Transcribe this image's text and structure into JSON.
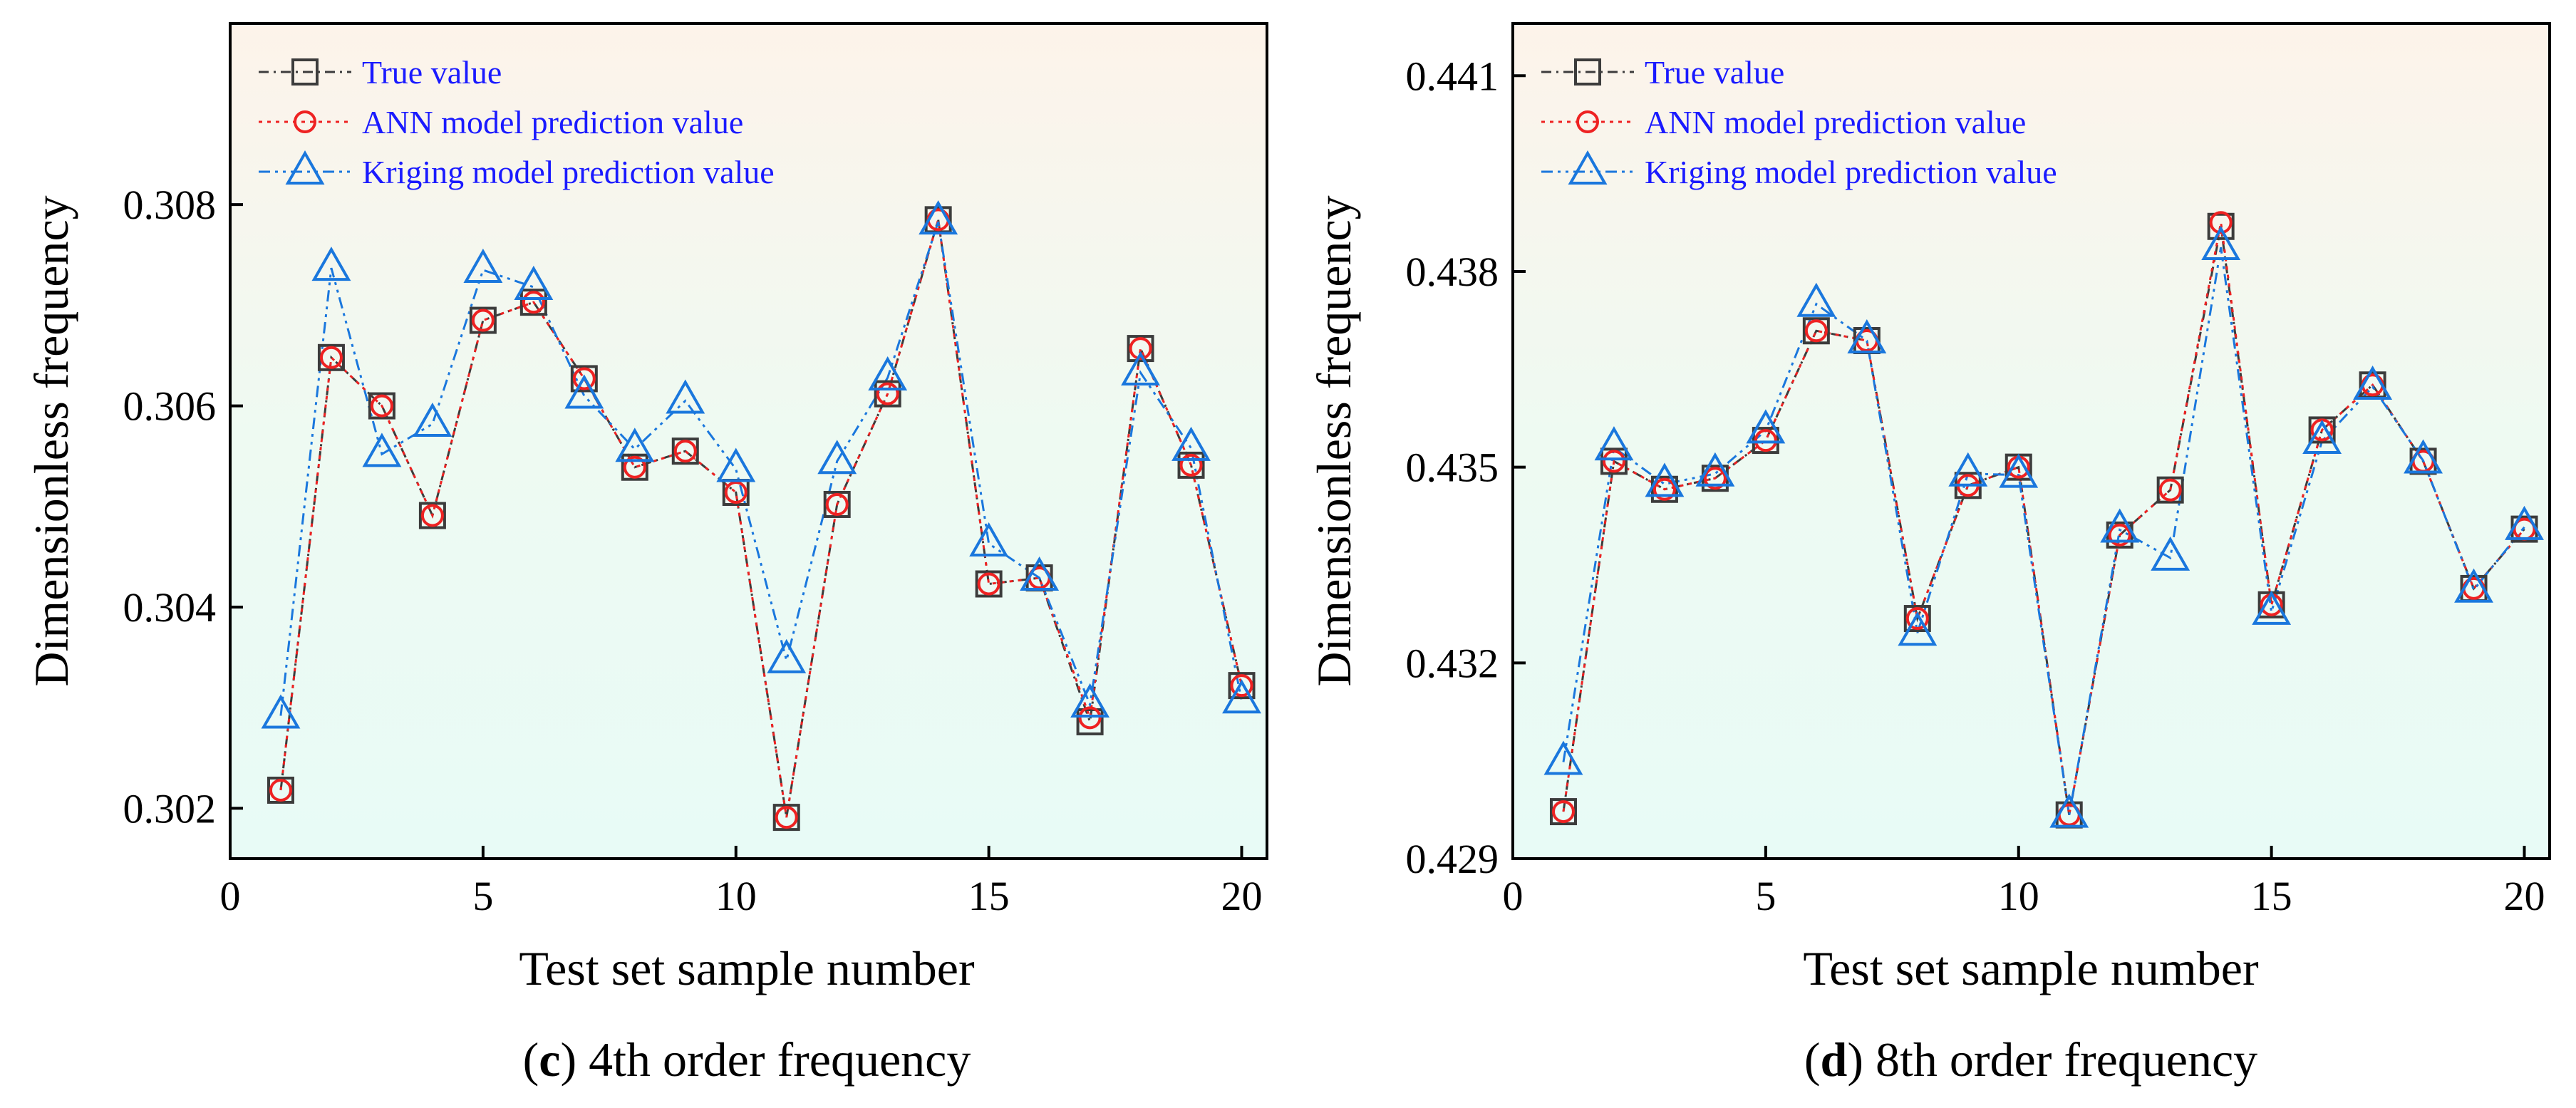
{
  "chart_data": [
    {
      "type": "line",
      "panel": "c",
      "caption": {
        "letter": "c",
        "text": "4th order frequency"
      },
      "xlabel": "Test set sample number",
      "ylabel": "Dimensionless  frequency",
      "xlim": [
        0,
        20.5
      ],
      "ylim": [
        0.3015,
        0.3098
      ],
      "xticks": [
        0,
        5,
        10,
        15,
        20
      ],
      "yticks": [
        0.302,
        0.304,
        0.306,
        0.308
      ],
      "ytick_labels": [
        "0.302",
        "0.304",
        "0.306",
        "0.308"
      ],
      "x": [
        1,
        2,
        3,
        4,
        5,
        6,
        7,
        8,
        9,
        10,
        11,
        12,
        13,
        14,
        15,
        16,
        17,
        18,
        19,
        20
      ],
      "legend_position": "top-left",
      "series": [
        {
          "name": "True value",
          "marker": "square",
          "color": "#3c3c3c",
          "values": [
            0.30218,
            0.30648,
            0.306,
            0.30491,
            0.30685,
            0.30703,
            0.30627,
            0.30539,
            0.30555,
            0.30514,
            0.30191,
            0.30502,
            0.30612,
            0.30785,
            0.30423,
            0.30429,
            0.30286,
            0.30657,
            0.30541,
            0.30322
          ]
        },
        {
          "name": "ANN model prediction value",
          "marker": "circle",
          "color": "#ee2222",
          "values": [
            0.30218,
            0.30648,
            0.306,
            0.30491,
            0.30685,
            0.30703,
            0.30627,
            0.30539,
            0.30555,
            0.30514,
            0.30191,
            0.30502,
            0.30612,
            0.30785,
            0.30423,
            0.30429,
            0.3029,
            0.30657,
            0.30541,
            0.30322
          ]
        },
        {
          "name": "Kriging model prediction value",
          "marker": "triangle",
          "color": "#1a77dd",
          "values": [
            0.30292,
            0.30737,
            0.30552,
            0.30582,
            0.30735,
            0.30718,
            0.3061,
            0.30557,
            0.30605,
            0.30537,
            0.30347,
            0.30545,
            0.30628,
            0.30783,
            0.30463,
            0.30429,
            0.30303,
            0.30633,
            0.30558,
            0.30307
          ]
        }
      ]
    },
    {
      "type": "line",
      "panel": "d",
      "caption": {
        "letter": "d",
        "text": "8th order frequency"
      },
      "xlabel": "Test set sample number",
      "ylabel": "Dimensionless  frequency",
      "xlim": [
        0,
        20.5
      ],
      "ylim": [
        0.429,
        0.4418
      ],
      "xticks": [
        0,
        5,
        10,
        15,
        20
      ],
      "yticks": [
        0.429,
        0.432,
        0.435,
        0.438,
        0.441
      ],
      "ytick_labels": [
        "0.429",
        "0.432",
        "0.435",
        "0.438",
        "0.441"
      ],
      "x": [
        1,
        2,
        3,
        4,
        5,
        6,
        7,
        8,
        9,
        10,
        11,
        12,
        13,
        14,
        15,
        16,
        17,
        18,
        19,
        20
      ],
      "legend_position": "top-left",
      "series": [
        {
          "name": "True value",
          "marker": "square",
          "color": "#3c3c3c",
          "values": [
            0.42972,
            0.43509,
            0.43466,
            0.43483,
            0.43541,
            0.43709,
            0.43694,
            0.43268,
            0.43472,
            0.435,
            0.42967,
            0.43396,
            0.43465,
            0.43869,
            0.43289,
            0.43557,
            0.43626,
            0.43509,
            0.43314,
            0.43405
          ]
        },
        {
          "name": "ANN model prediction value",
          "marker": "circle",
          "color": "#ee2222",
          "values": [
            0.42972,
            0.43509,
            0.43466,
            0.43483,
            0.43541,
            0.43709,
            0.43694,
            0.43268,
            0.43472,
            0.435,
            0.42967,
            0.43396,
            0.43465,
            0.43875,
            0.43289,
            0.43557,
            0.43626,
            0.43509,
            0.43314,
            0.43405
          ]
        },
        {
          "name": "Kriging model prediction value",
          "marker": "triangle",
          "color": "#1a77dd",
          "values": [
            0.43048,
            0.4353,
            0.43474,
            0.4349,
            0.43556,
            0.4375,
            0.43694,
            0.43246,
            0.4349,
            0.43488,
            0.42967,
            0.43404,
            0.43361,
            0.43837,
            0.43278,
            0.4354,
            0.43623,
            0.4351,
            0.43312,
            0.43408
          ]
        }
      ]
    }
  ]
}
